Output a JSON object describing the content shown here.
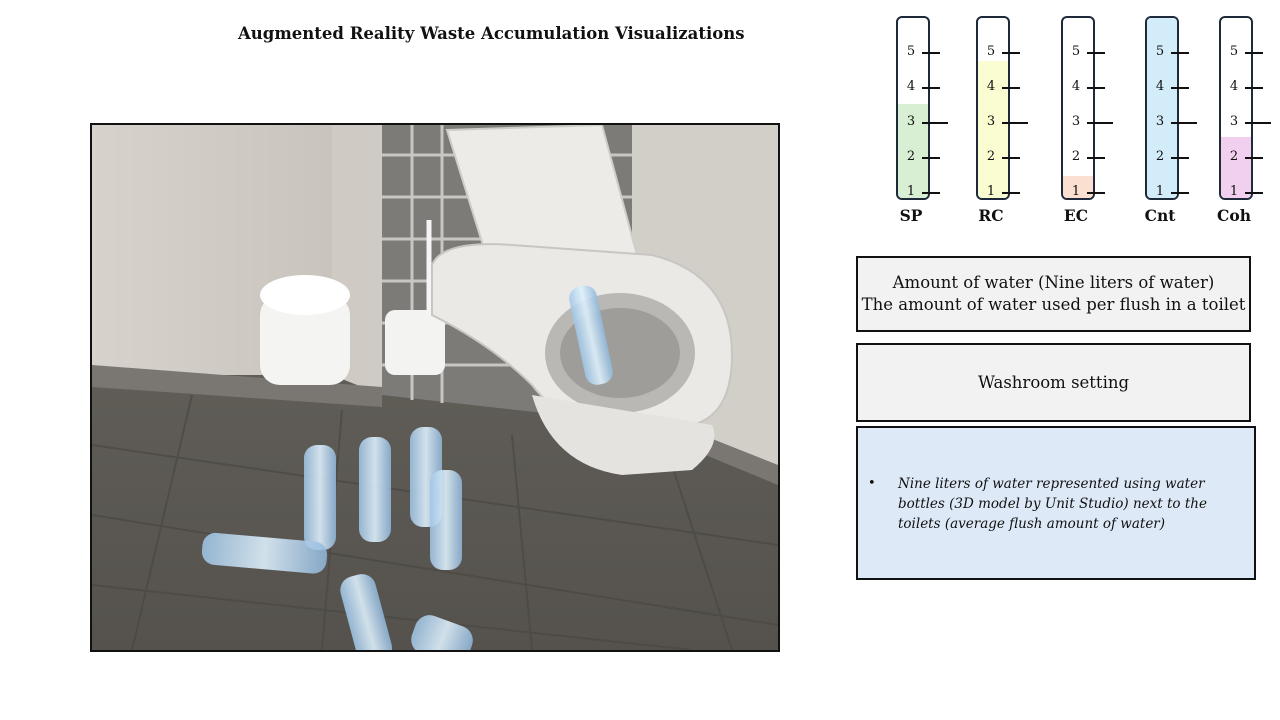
{
  "title": "Augmented Reality Waste Accumulation Visualizations",
  "photo": {
    "icon": "washroom-photo-icon"
  },
  "scale": {
    "ticks": [
      "1",
      "2",
      "3",
      "4",
      "5"
    ],
    "gauges": [
      {
        "label": "SP",
        "level": 2.6,
        "color": "#d8efd3"
      },
      {
        "label": "RC",
        "level": 3.8,
        "color": "#fafcd2"
      },
      {
        "label": "EC",
        "level": 0.6,
        "color": "#fbe0d2"
      },
      {
        "label": "Cnt",
        "level": 5,
        "color": "#d3ecf9"
      },
      {
        "label": "Coh",
        "level": 1.7,
        "color": "#f1d0ef"
      }
    ]
  },
  "info": {
    "water_line1": "Amount of water (Nine liters of water)",
    "water_line2": "The amount of water used per flush in a toilet",
    "setting": "Washroom setting",
    "bullet": "•",
    "description": "Nine liters of water represented using water bottles (3D model by Unit Studio) next to the toilets (average flush amount of water)"
  }
}
